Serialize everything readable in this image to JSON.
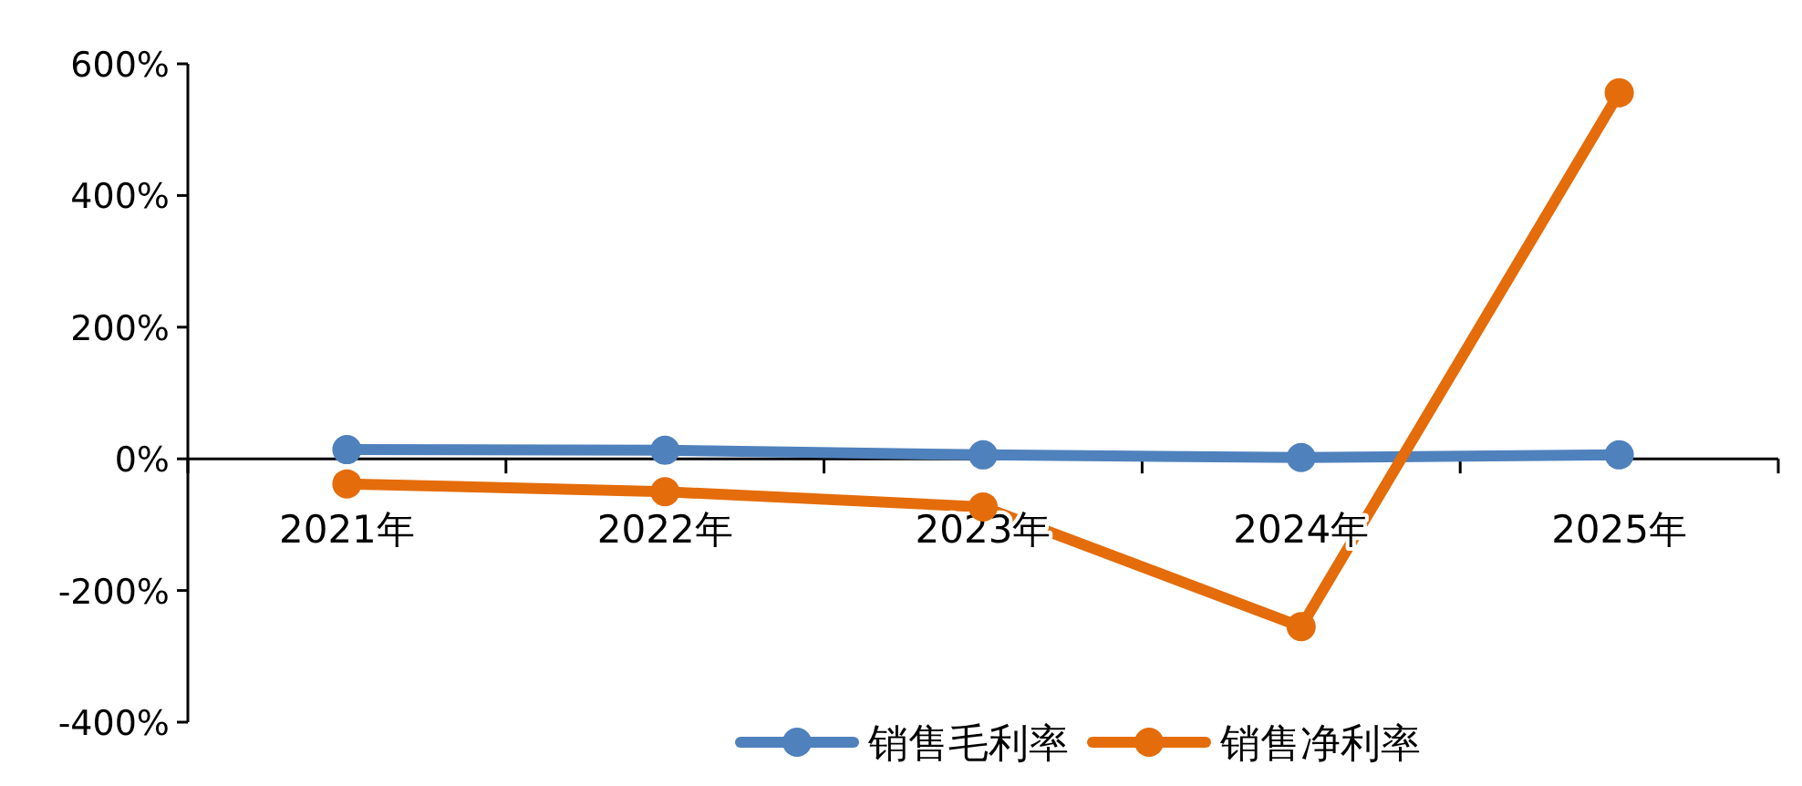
{
  "chart_data": {
    "type": "line",
    "categories": [
      "2021年",
      "2022年",
      "2023年",
      "2024年",
      "2025年"
    ],
    "series": [
      {
        "name": "销售毛利率",
        "color": "#4f81bd",
        "values": [
          14,
          13,
          6,
          2,
          6
        ]
      },
      {
        "name": "销售净利率",
        "color": "#e46c0a",
        "values": [
          -38,
          -50,
          -73,
          -255,
          556
        ]
      }
    ],
    "ylim": [
      -400,
      600
    ],
    "yticks": [
      {
        "value": -400,
        "label": "-400%"
      },
      {
        "value": -200,
        "label": "-200%"
      },
      {
        "value": 0,
        "label": "0%"
      },
      {
        "value": 200,
        "label": "200%"
      },
      {
        "value": 400,
        "label": "400%"
      },
      {
        "value": 600,
        "label": "600%"
      }
    ],
    "legend": "bottom",
    "marker": "circle",
    "line_style": "solid",
    "grid": false
  }
}
